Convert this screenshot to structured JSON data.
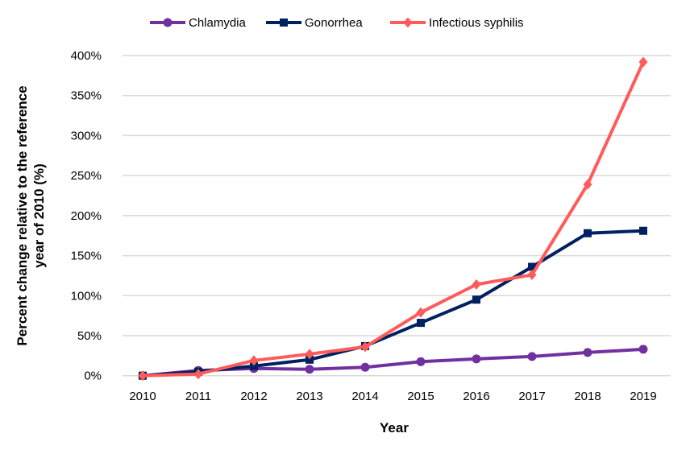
{
  "chart_data": {
    "type": "line",
    "title": "",
    "xlabel": "Year",
    "ylabel_lines": [
      "Percent change relative to the reference",
      "year of 2010 (%)"
    ],
    "x": [
      "2010",
      "2011",
      "2012",
      "2013",
      "2014",
      "2015",
      "2016",
      "2017",
      "2018",
      "2019"
    ],
    "ylim": [
      0,
      400
    ],
    "yticks": [
      "0%",
      "50%",
      "100%",
      "150%",
      "200%",
      "250%",
      "300%",
      "350%",
      "400%"
    ],
    "grid": true,
    "legend_position": "top",
    "series": [
      {
        "name": "Chlamydia",
        "color": "#7030A0",
        "marker": "circle",
        "values": [
          0,
          6.5,
          9,
          8,
          10.5,
          17.5,
          21,
          24,
          29,
          33
        ]
      },
      {
        "name": "Gonorrhea",
        "color": "#002060",
        "marker": "square",
        "values": [
          0,
          5,
          12,
          20,
          37,
          66,
          95,
          136,
          178,
          181
        ]
      },
      {
        "name": "Infectious syphilis",
        "color": "#FF5B5B",
        "marker": "diamond",
        "values": [
          0,
          2,
          19,
          27,
          36,
          79,
          114,
          126,
          239,
          392
        ]
      }
    ]
  }
}
